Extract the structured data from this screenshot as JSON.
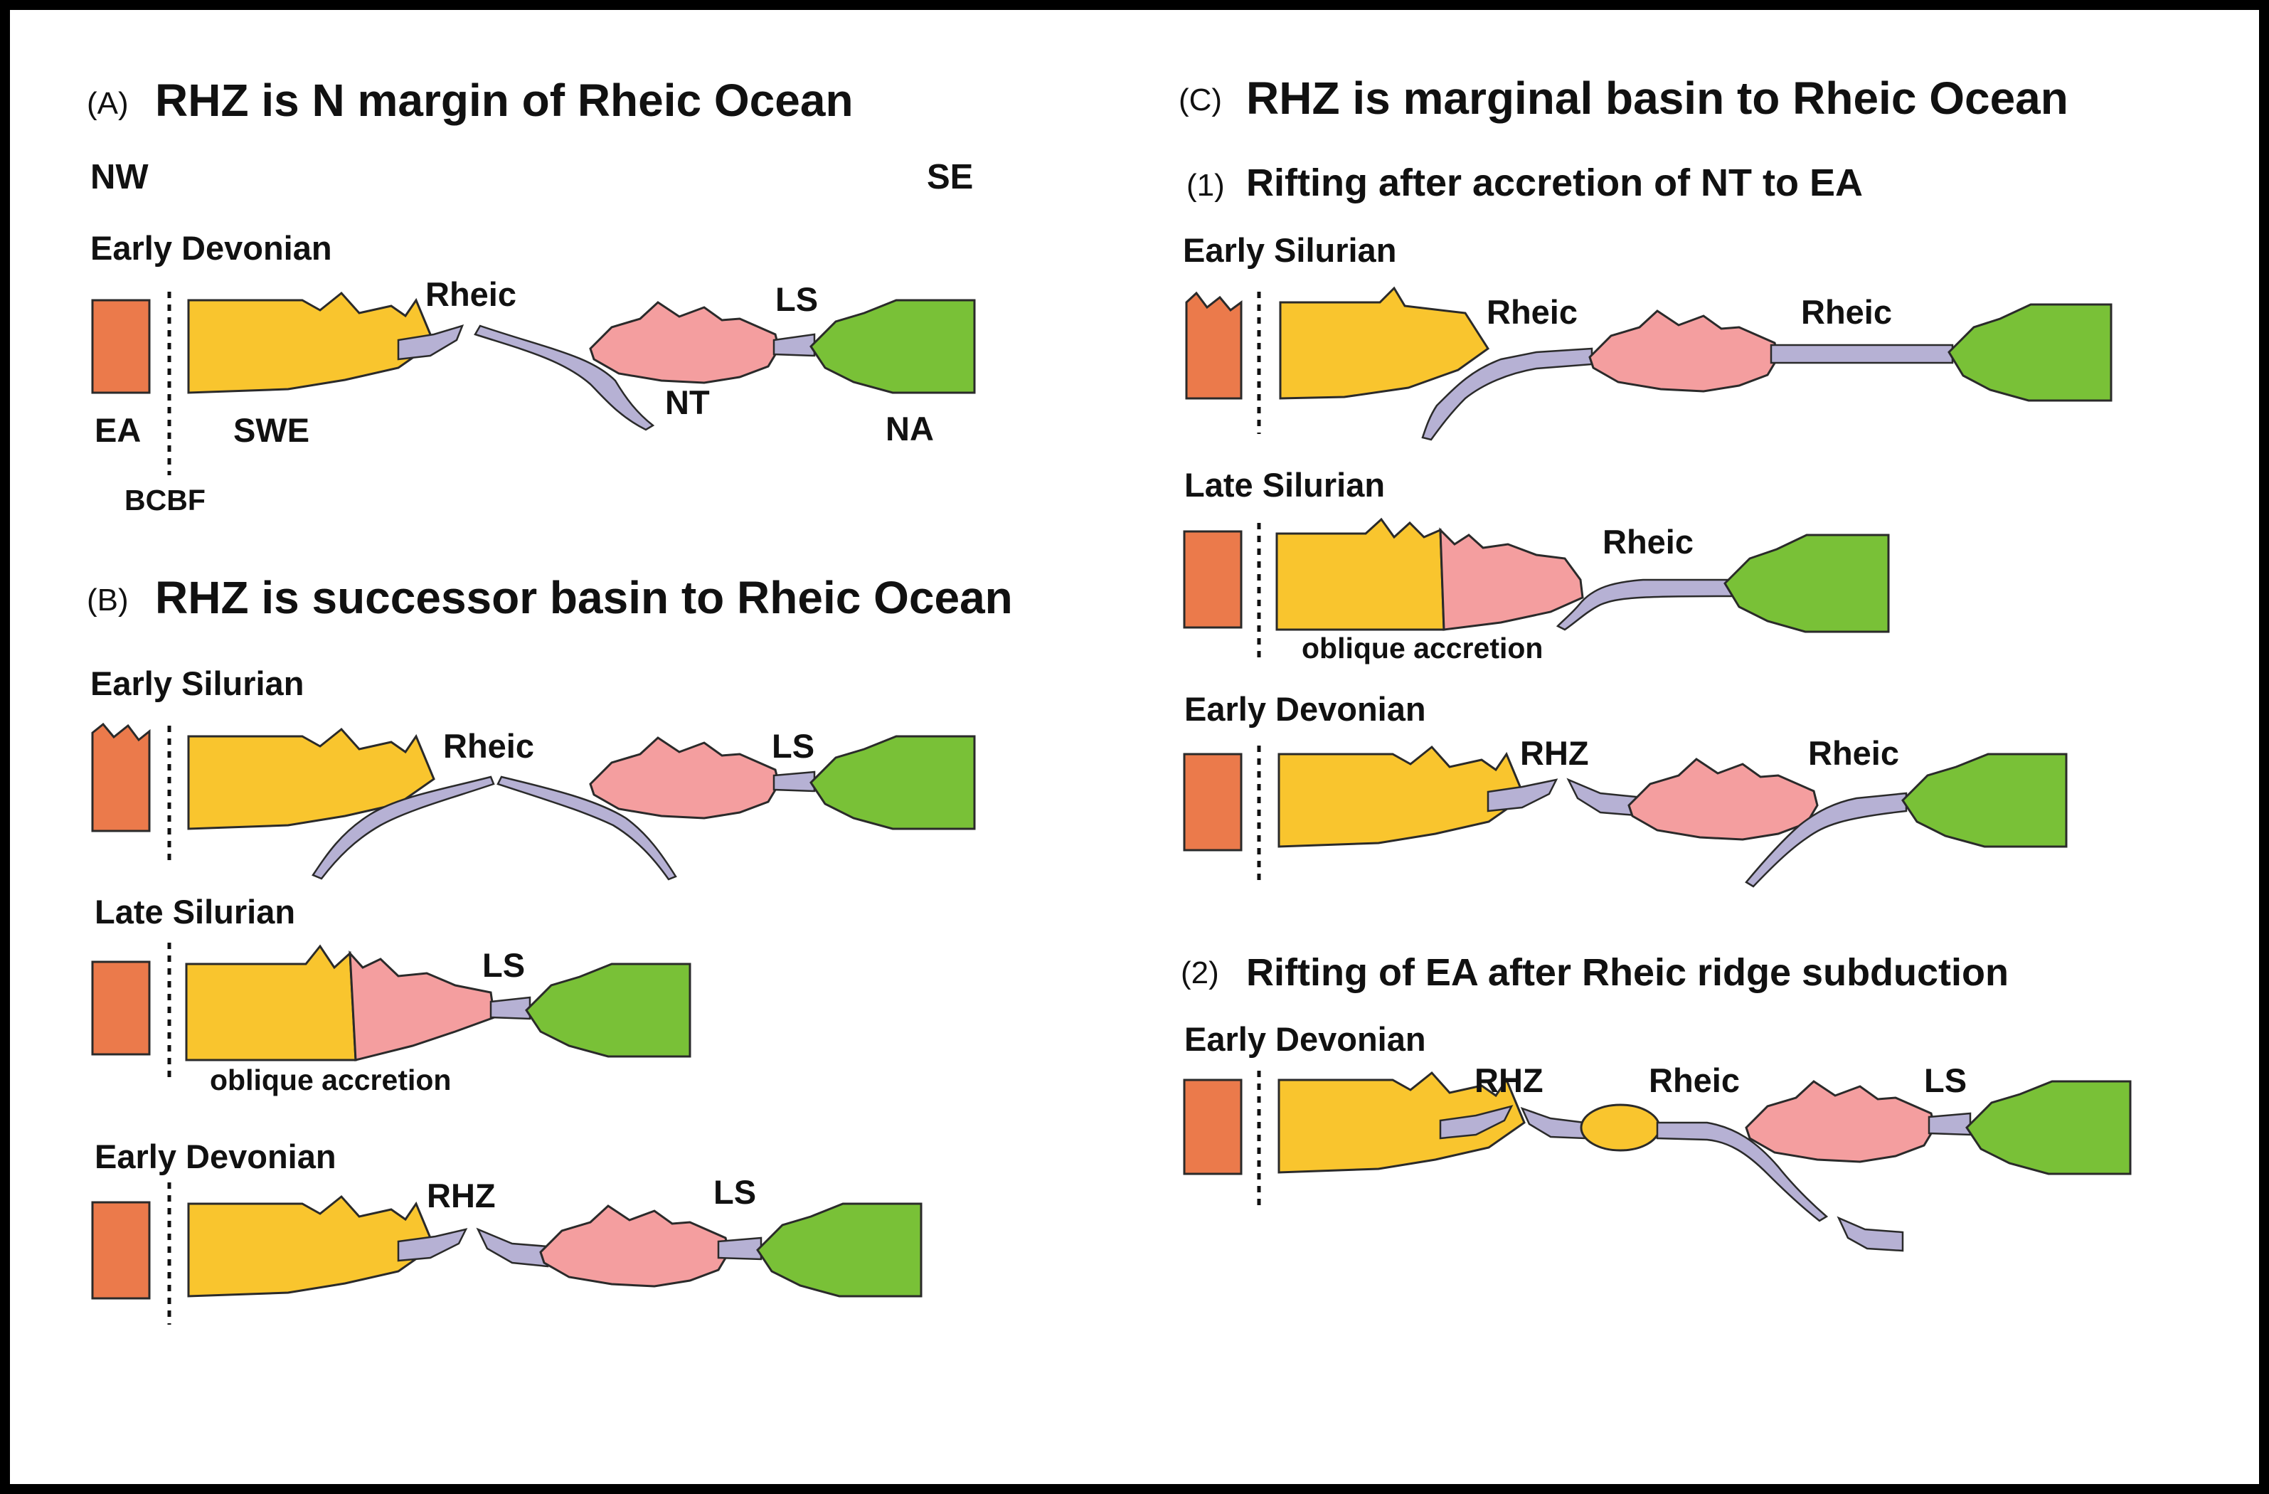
{
  "colors": {
    "ea": "#eb7a4b",
    "swe": "#f9c52e",
    "nt": "#f49e9f",
    "na": "#79c137",
    "ocean": "#b6b1d4",
    "background": "#ffffff",
    "frame": "#000000"
  },
  "panel_a": {
    "tag": "(A)",
    "title": "RHZ is N margin of Rheic Ocean",
    "nw": "NW",
    "se": "SE",
    "era": "Early Devonian",
    "rheic": "Rheic",
    "ls": "LS",
    "ea": "EA",
    "swe": "SWE",
    "nt": "NT",
    "na": "NA",
    "bcbf": "BCBF"
  },
  "panel_b": {
    "tag": "(B)",
    "title": "RHZ is successor basin to Rheic Ocean",
    "stage1": {
      "era": "Early Silurian",
      "rheic": "Rheic",
      "ls": "LS"
    },
    "stage2": {
      "era": "Late Silurian",
      "ls": "LS",
      "note": "oblique accretion"
    },
    "stage3": {
      "era": "Early Devonian",
      "rhz": "RHZ",
      "ls": "LS"
    }
  },
  "panel_c": {
    "tag": "(C)",
    "title": "RHZ is marginal basin to Rheic Ocean",
    "sub1": {
      "tag": "(1)",
      "title": "Rifting after accretion of NT to EA",
      "stage1": {
        "era": "Early Silurian",
        "rheic_a": "Rheic",
        "rheic_b": "Rheic"
      },
      "stage2": {
        "era": "Late Silurian",
        "rheic": "Rheic",
        "note": "oblique accretion"
      },
      "stage3": {
        "era": "Early Devonian",
        "rhz": "RHZ",
        "rheic": "Rheic"
      }
    },
    "sub2": {
      "tag": "(2)",
      "title": "Rifting of EA after Rheic ridge subduction",
      "stage1": {
        "era": "Early Devonian",
        "rhz": "RHZ",
        "rheic": "Rheic",
        "ls": "LS"
      }
    }
  }
}
